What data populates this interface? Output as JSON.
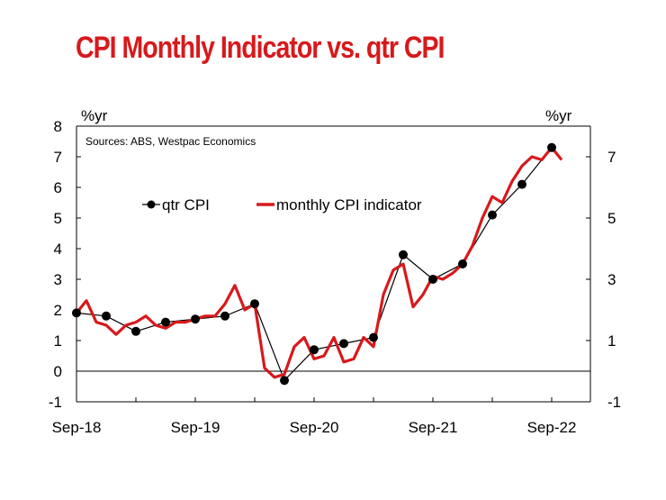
{
  "title": "CPI Monthly Indicator vs. qtr CPI",
  "colors": {
    "title": "#d7191c",
    "monthly_line": "#d7191c",
    "qtr_line": "#000000",
    "axes": "#000000"
  },
  "chart_data": {
    "type": "line",
    "title": "CPI Monthly Indicator vs. qtr CPI",
    "source_note": "Sources: ABS, Westpac Economics",
    "left_axis_unit": "%yr",
    "right_axis_unit": "%yr",
    "ylim": [
      -1,
      8
    ],
    "left_ticks": [
      "8",
      "7",
      "6",
      "5",
      "4",
      "3",
      "2",
      "1",
      "0",
      "-1"
    ],
    "right_ticks": [
      "7",
      "5",
      "3",
      "1",
      "-1"
    ],
    "x_tick_labels": [
      "Sep-18",
      "Sep-19",
      "Sep-20",
      "Sep-21",
      "Sep-22"
    ],
    "legend": [
      "qtr CPI",
      "monthly CPI indicator"
    ],
    "legend_placement": "upper-left",
    "grid": false,
    "series": [
      {
        "name": "qtr CPI",
        "style": "black line with circle markers",
        "x": [
          "Sep-18",
          "Dec-18",
          "Mar-19",
          "Jun-19",
          "Sep-19",
          "Dec-19",
          "Mar-20",
          "Jun-20",
          "Sep-20",
          "Dec-20",
          "Mar-21",
          "Jun-21",
          "Sep-21",
          "Dec-21",
          "Mar-22",
          "Jun-22",
          "Sep-22"
        ],
        "values": [
          1.9,
          1.8,
          1.3,
          1.6,
          1.7,
          1.8,
          2.2,
          -0.3,
          0.7,
          0.9,
          1.1,
          3.8,
          3.0,
          3.5,
          5.1,
          6.1,
          7.3
        ]
      },
      {
        "name": "monthly CPI indicator",
        "style": "red line",
        "x": [
          "Sep-18",
          "Oct-18",
          "Nov-18",
          "Dec-18",
          "Jan-19",
          "Feb-19",
          "Mar-19",
          "Apr-19",
          "May-19",
          "Jun-19",
          "Jul-19",
          "Aug-19",
          "Sep-19",
          "Oct-19",
          "Nov-19",
          "Dec-19",
          "Jan-20",
          "Feb-20",
          "Mar-20",
          "Apr-20",
          "May-20",
          "Jun-20",
          "Jul-20",
          "Aug-20",
          "Sep-20",
          "Oct-20",
          "Nov-20",
          "Dec-20",
          "Jan-21",
          "Feb-21",
          "Mar-21",
          "Apr-21",
          "May-21",
          "Jun-21",
          "Jul-21",
          "Aug-21",
          "Sep-21",
          "Oct-21",
          "Nov-21",
          "Dec-21",
          "Jan-22",
          "Feb-22",
          "Mar-22",
          "Apr-22",
          "May-22",
          "Jun-22",
          "Jul-22",
          "Aug-22",
          "Sep-22",
          "Oct-22"
        ],
        "values": [
          1.9,
          2.3,
          1.6,
          1.5,
          1.2,
          1.5,
          1.6,
          1.8,
          1.5,
          1.4,
          1.6,
          1.6,
          1.7,
          1.8,
          1.8,
          2.2,
          2.8,
          2.0,
          2.2,
          0.1,
          -0.2,
          -0.1,
          0.8,
          1.1,
          0.4,
          0.5,
          1.1,
          0.3,
          0.4,
          1.1,
          0.8,
          2.5,
          3.3,
          3.5,
          2.1,
          2.5,
          3.1,
          3.0,
          3.2,
          3.5,
          4.1,
          5.0,
          5.7,
          5.5,
          6.2,
          6.7,
          7.0,
          6.9,
          7.3,
          6.9
        ]
      }
    ]
  }
}
